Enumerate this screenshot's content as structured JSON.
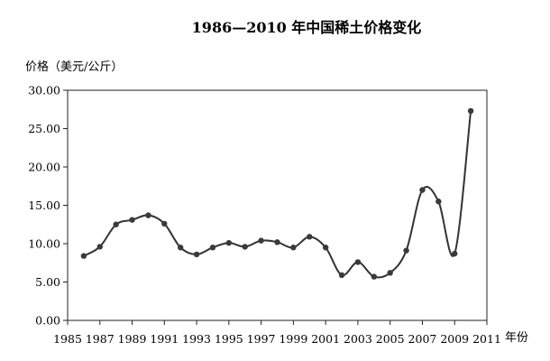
{
  "chart_data": {
    "type": "line",
    "title": "1986—2010 年中国稀土价格变化",
    "ylabel": "价格（美元/公斤）",
    "xlabel": "年份",
    "xlim": [
      1985,
      2011
    ],
    "ylim": [
      0,
      30
    ],
    "x_ticks": [
      "1985",
      "1987",
      "1989",
      "1991",
      "1993",
      "1995",
      "1997",
      "1999",
      "2001",
      "2003",
      "2005",
      "2007",
      "2009",
      "2011"
    ],
    "y_ticks": [
      "0.00",
      "5.00",
      "10.00",
      "15.00",
      "20.00",
      "25.00",
      "30.00"
    ],
    "grid": false,
    "legend": "none",
    "line_color": "#333333",
    "marker_color": "#3a3a3a",
    "series": [
      {
        "x": [
          1986,
          1987,
          1988,
          1989,
          1990,
          1991,
          1992,
          1993,
          1994,
          1995,
          1996,
          1997,
          1998,
          1999,
          2000,
          2001,
          2002,
          2003,
          2004,
          2005,
          2006,
          2007,
          2008,
          2009,
          2010
        ],
        "values": [
          8.4,
          9.6,
          12.5,
          13.1,
          13.7,
          12.6,
          9.5,
          8.6,
          9.5,
          10.1,
          9.6,
          10.4,
          10.2,
          9.5,
          10.9,
          9.5,
          5.9,
          7.6,
          5.7,
          6.2,
          9.1,
          17.0,
          15.5,
          8.7,
          27.3
        ]
      }
    ]
  }
}
